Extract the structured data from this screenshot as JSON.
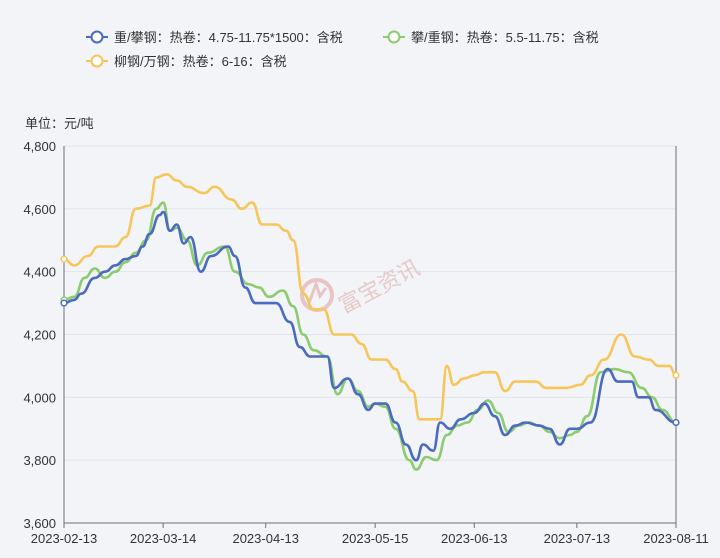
{
  "chart_data": {
    "type": "line",
    "unit_label": "单位：元/吨",
    "watermark": "富宝资讯",
    "ylim": [
      3600,
      4800
    ],
    "y_ticks": [
      3600,
      3800,
      4000,
      4200,
      4400,
      4600,
      4800
    ],
    "y_tick_labels": [
      "3,600",
      "3,800",
      "4,000",
      "4,200",
      "4,400",
      "4,600",
      "4,800"
    ],
    "x_tick_labels": [
      "2023-02-13",
      "2023-03-14",
      "2023-04-13",
      "2023-05-15",
      "2023-06-13",
      "2023-07-13",
      "2023-08-11"
    ],
    "x_range": [
      "2023-02-13",
      "2023-08-11"
    ],
    "grid": true,
    "legend_position": "top-left",
    "series": [
      {
        "name": "重/攀钢：热卷：4.75-11.75*1500：含税",
        "color": "#4a6bbf",
        "points": [
          [
            "2023-02-13",
            4300
          ],
          [
            "2023-02-16",
            4310
          ],
          [
            "2023-02-18",
            4330
          ],
          [
            "2023-02-22",
            4380
          ],
          [
            "2023-02-25",
            4400
          ],
          [
            "2023-02-28",
            4420
          ],
          [
            "2023-03-03",
            4440
          ],
          [
            "2023-03-06",
            4450
          ],
          [
            "2023-03-08",
            4480
          ],
          [
            "2023-03-10",
            4520
          ],
          [
            "2023-03-13",
            4580
          ],
          [
            "2023-03-14",
            4590
          ],
          [
            "2023-03-16",
            4530
          ],
          [
            "2023-03-18",
            4550
          ],
          [
            "2023-03-20",
            4490
          ],
          [
            "2023-03-22",
            4510
          ],
          [
            "2023-03-25",
            4400
          ],
          [
            "2023-03-28",
            4450
          ],
          [
            "2023-04-02",
            4480
          ],
          [
            "2023-04-04",
            4450
          ],
          [
            "2023-04-07",
            4350
          ],
          [
            "2023-04-10",
            4300
          ],
          [
            "2023-04-13",
            4300
          ],
          [
            "2023-04-16",
            4300
          ],
          [
            "2023-04-20",
            4240
          ],
          [
            "2023-04-23",
            4160
          ],
          [
            "2023-04-26",
            4130
          ],
          [
            "2023-05-01",
            4130
          ],
          [
            "2023-05-03",
            4030
          ],
          [
            "2023-05-07",
            4060
          ],
          [
            "2023-05-10",
            4010
          ],
          [
            "2023-05-13",
            3960
          ],
          [
            "2023-05-15",
            3980
          ],
          [
            "2023-05-18",
            3980
          ],
          [
            "2023-05-21",
            3920
          ],
          [
            "2023-05-24",
            3850
          ],
          [
            "2023-05-27",
            3800
          ],
          [
            "2023-05-29",
            3850
          ],
          [
            "2023-06-01",
            3830
          ],
          [
            "2023-06-03",
            3920
          ],
          [
            "2023-06-06",
            3900
          ],
          [
            "2023-06-09",
            3930
          ],
          [
            "2023-06-13",
            3950
          ],
          [
            "2023-06-16",
            3980
          ],
          [
            "2023-06-19",
            3940
          ],
          [
            "2023-06-22",
            3880
          ],
          [
            "2023-06-25",
            3910
          ],
          [
            "2023-06-28",
            3920
          ],
          [
            "2023-07-02",
            3910
          ],
          [
            "2023-07-05",
            3900
          ],
          [
            "2023-07-08",
            3850
          ],
          [
            "2023-07-11",
            3900
          ],
          [
            "2023-07-13",
            3900
          ],
          [
            "2023-07-17",
            3920
          ],
          [
            "2023-07-22",
            4090
          ],
          [
            "2023-07-25",
            4050
          ],
          [
            "2023-07-29",
            4050
          ],
          [
            "2023-07-31",
            4000
          ],
          [
            "2023-08-03",
            4000
          ],
          [
            "2023-08-05",
            3960
          ],
          [
            "2023-08-11",
            3920
          ]
        ]
      },
      {
        "name": "攀/重钢：热卷：5.5-11.75：含税",
        "color": "#8ccb6e",
        "points": [
          [
            "2023-02-13",
            4310
          ],
          [
            "2023-02-16",
            4320
          ],
          [
            "2023-02-19",
            4380
          ],
          [
            "2023-02-22",
            4410
          ],
          [
            "2023-02-25",
            4380
          ],
          [
            "2023-02-28",
            4400
          ],
          [
            "2023-03-03",
            4430
          ],
          [
            "2023-03-06",
            4460
          ],
          [
            "2023-03-09",
            4500
          ],
          [
            "2023-03-12",
            4600
          ],
          [
            "2023-03-14",
            4620
          ],
          [
            "2023-03-16",
            4530
          ],
          [
            "2023-03-18",
            4540
          ],
          [
            "2023-03-21",
            4500
          ],
          [
            "2023-03-24",
            4420
          ],
          [
            "2023-03-27",
            4460
          ],
          [
            "2023-04-01",
            4480
          ],
          [
            "2023-04-04",
            4400
          ],
          [
            "2023-04-08",
            4360
          ],
          [
            "2023-04-11",
            4350
          ],
          [
            "2023-04-14",
            4320
          ],
          [
            "2023-04-18",
            4340
          ],
          [
            "2023-04-21",
            4290
          ],
          [
            "2023-04-24",
            4200
          ],
          [
            "2023-04-27",
            4150
          ],
          [
            "2023-05-01",
            4130
          ],
          [
            "2023-05-04",
            4010
          ],
          [
            "2023-05-07",
            4060
          ],
          [
            "2023-05-10",
            4020
          ],
          [
            "2023-05-13",
            3970
          ],
          [
            "2023-05-15",
            3980
          ],
          [
            "2023-05-18",
            3970
          ],
          [
            "2023-05-21",
            3900
          ],
          [
            "2023-05-25",
            3800
          ],
          [
            "2023-05-27",
            3770
          ],
          [
            "2023-05-30",
            3810
          ],
          [
            "2023-06-02",
            3800
          ],
          [
            "2023-06-05",
            3880
          ],
          [
            "2023-06-08",
            3910
          ],
          [
            "2023-06-11",
            3920
          ],
          [
            "2023-06-14",
            3960
          ],
          [
            "2023-06-17",
            3990
          ],
          [
            "2023-06-20",
            3950
          ],
          [
            "2023-06-23",
            3890
          ],
          [
            "2023-06-26",
            3910
          ],
          [
            "2023-06-29",
            3920
          ],
          [
            "2023-07-02",
            3910
          ],
          [
            "2023-07-05",
            3890
          ],
          [
            "2023-07-08",
            3870
          ],
          [
            "2023-07-11",
            3880
          ],
          [
            "2023-07-13",
            3890
          ],
          [
            "2023-07-16",
            3940
          ],
          [
            "2023-07-20",
            4080
          ],
          [
            "2023-07-24",
            4090
          ],
          [
            "2023-07-28",
            4080
          ],
          [
            "2023-08-01",
            4030
          ],
          [
            "2023-08-04",
            4000
          ],
          [
            "2023-08-07",
            3960
          ],
          [
            "2023-08-11",
            3920
          ]
        ]
      },
      {
        "name": "柳钢/万钢：热卷：6-16：含税",
        "color": "#f7c65b",
        "points": [
          [
            "2023-02-13",
            4440
          ],
          [
            "2023-02-16",
            4420
          ],
          [
            "2023-02-20",
            4450
          ],
          [
            "2023-02-23",
            4480
          ],
          [
            "2023-02-28",
            4480
          ],
          [
            "2023-03-03",
            4510
          ],
          [
            "2023-03-06",
            4600
          ],
          [
            "2023-03-10",
            4610
          ],
          [
            "2023-03-12",
            4700
          ],
          [
            "2023-03-15",
            4710
          ],
          [
            "2023-03-18",
            4690
          ],
          [
            "2023-03-21",
            4670
          ],
          [
            "2023-03-26",
            4650
          ],
          [
            "2023-03-29",
            4670
          ],
          [
            "2023-04-03",
            4630
          ],
          [
            "2023-04-06",
            4600
          ],
          [
            "2023-04-09",
            4620
          ],
          [
            "2023-04-12",
            4550
          ],
          [
            "2023-04-16",
            4550
          ],
          [
            "2023-04-19",
            4530
          ],
          [
            "2023-04-21",
            4500
          ],
          [
            "2023-04-24",
            4330
          ],
          [
            "2023-04-27",
            4280
          ],
          [
            "2023-04-30",
            4280
          ],
          [
            "2023-05-03",
            4200
          ],
          [
            "2023-05-08",
            4200
          ],
          [
            "2023-05-11",
            4170
          ],
          [
            "2023-05-14",
            4120
          ],
          [
            "2023-05-18",
            4120
          ],
          [
            "2023-05-21",
            4090
          ],
          [
            "2023-05-23",
            4050
          ],
          [
            "2023-05-26",
            4020
          ],
          [
            "2023-05-28",
            3930
          ],
          [
            "2023-06-03",
            3930
          ],
          [
            "2023-06-05",
            4100
          ],
          [
            "2023-06-07",
            4040
          ],
          [
            "2023-06-10",
            4060
          ],
          [
            "2023-06-13",
            4070
          ],
          [
            "2023-06-16",
            4080
          ],
          [
            "2023-06-19",
            4080
          ],
          [
            "2023-06-22",
            4020
          ],
          [
            "2023-06-25",
            4050
          ],
          [
            "2023-07-01",
            4050
          ],
          [
            "2023-07-04",
            4030
          ],
          [
            "2023-07-10",
            4030
          ],
          [
            "2023-07-14",
            4040
          ],
          [
            "2023-07-17",
            4070
          ],
          [
            "2023-07-21",
            4120
          ],
          [
            "2023-07-26",
            4200
          ],
          [
            "2023-07-30",
            4130
          ],
          [
            "2023-08-03",
            4120
          ],
          [
            "2023-08-06",
            4100
          ],
          [
            "2023-08-09",
            4100
          ],
          [
            "2023-08-11",
            4070
          ]
        ]
      }
    ]
  }
}
